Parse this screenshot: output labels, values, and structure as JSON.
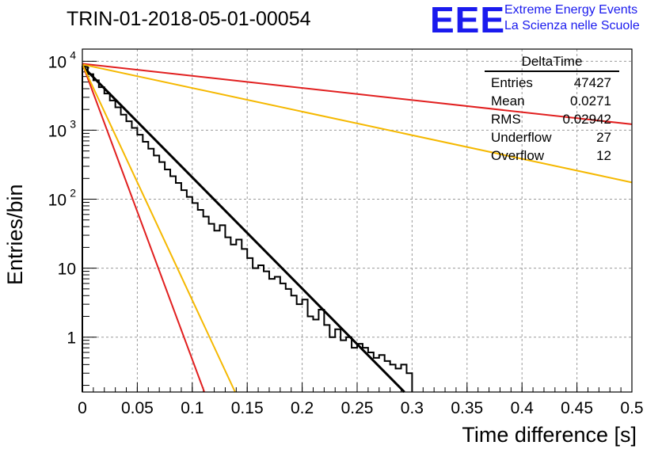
{
  "title": "TRIN-01-2018-05-01-00054",
  "logo": {
    "mark": "EEE",
    "line1": "Extreme Energy Events",
    "line2": "La Scienza nelle Scuole",
    "color": "#1a1aee"
  },
  "stats_box": {
    "name": "DeltaTime",
    "rows": [
      {
        "label": "Entries",
        "value": "47427"
      },
      {
        "label": "Mean",
        "value": "0.0271"
      },
      {
        "label": "RMS",
        "value": "0.02942"
      },
      {
        "label": "Underflow",
        "value": "27"
      },
      {
        "label": "Overflow",
        "value": "12"
      }
    ]
  },
  "chart_data": {
    "type": "line",
    "xlabel": "Time difference [s]",
    "ylabel": "Entries/bin",
    "xlim": [
      0,
      0.5
    ],
    "ylim": [
      0.16,
      15000
    ],
    "yscale": "log",
    "grid": true,
    "x_ticks": [
      "0",
      "0.05",
      "0.1",
      "0.15",
      "0.2",
      "0.25",
      "0.3",
      "0.35",
      "0.4",
      "0.45",
      "0.5"
    ],
    "y_ticks": [
      {
        "value": 10000,
        "base": "10",
        "exp": "4"
      },
      {
        "value": 1000,
        "base": "10",
        "exp": "3"
      },
      {
        "value": 100,
        "base": "10",
        "exp": "2"
      },
      {
        "value": 10,
        "base": "10",
        "exp": ""
      },
      {
        "value": 1,
        "base": "1",
        "exp": ""
      }
    ],
    "histogram": {
      "color": "#000000",
      "bin_width": 0.005,
      "values": [
        8400,
        6500,
        5300,
        4200,
        3400,
        2700,
        2150,
        1680,
        1350,
        1080,
        860,
        680,
        540,
        430,
        345,
        270,
        215,
        172,
        135,
        108,
        88,
        70,
        56,
        44,
        35,
        42,
        28,
        22,
        26,
        19,
        14,
        10,
        11,
        9,
        7,
        7.5,
        6,
        5,
        4,
        3,
        3.5,
        2,
        1.8,
        2.5,
        1.5,
        1,
        1.3,
        0.9,
        1,
        0.7,
        0.8,
        0.7,
        0.6,
        0.5,
        0.55,
        0.45,
        0.4,
        0.35,
        0.4,
        0.3
      ]
    },
    "series": [
      {
        "color": "#000000",
        "x": [
          0,
          0.293
        ],
        "y": [
          8500,
          0.16
        ]
      },
      {
        "color": "#e11f1f",
        "x": [
          0,
          0.5
        ],
        "y": [
          9200,
          1220
        ]
      },
      {
        "color": "#f5b800",
        "x": [
          0,
          0.5
        ],
        "y": [
          9000,
          175
        ]
      },
      {
        "color": "#e11f1f",
        "x": [
          0,
          0.111
        ],
        "y": [
          9200,
          0.16
        ]
      },
      {
        "color": "#f5b800",
        "x": [
          0,
          0.139
        ],
        "y": [
          9000,
          0.16
        ]
      }
    ]
  }
}
